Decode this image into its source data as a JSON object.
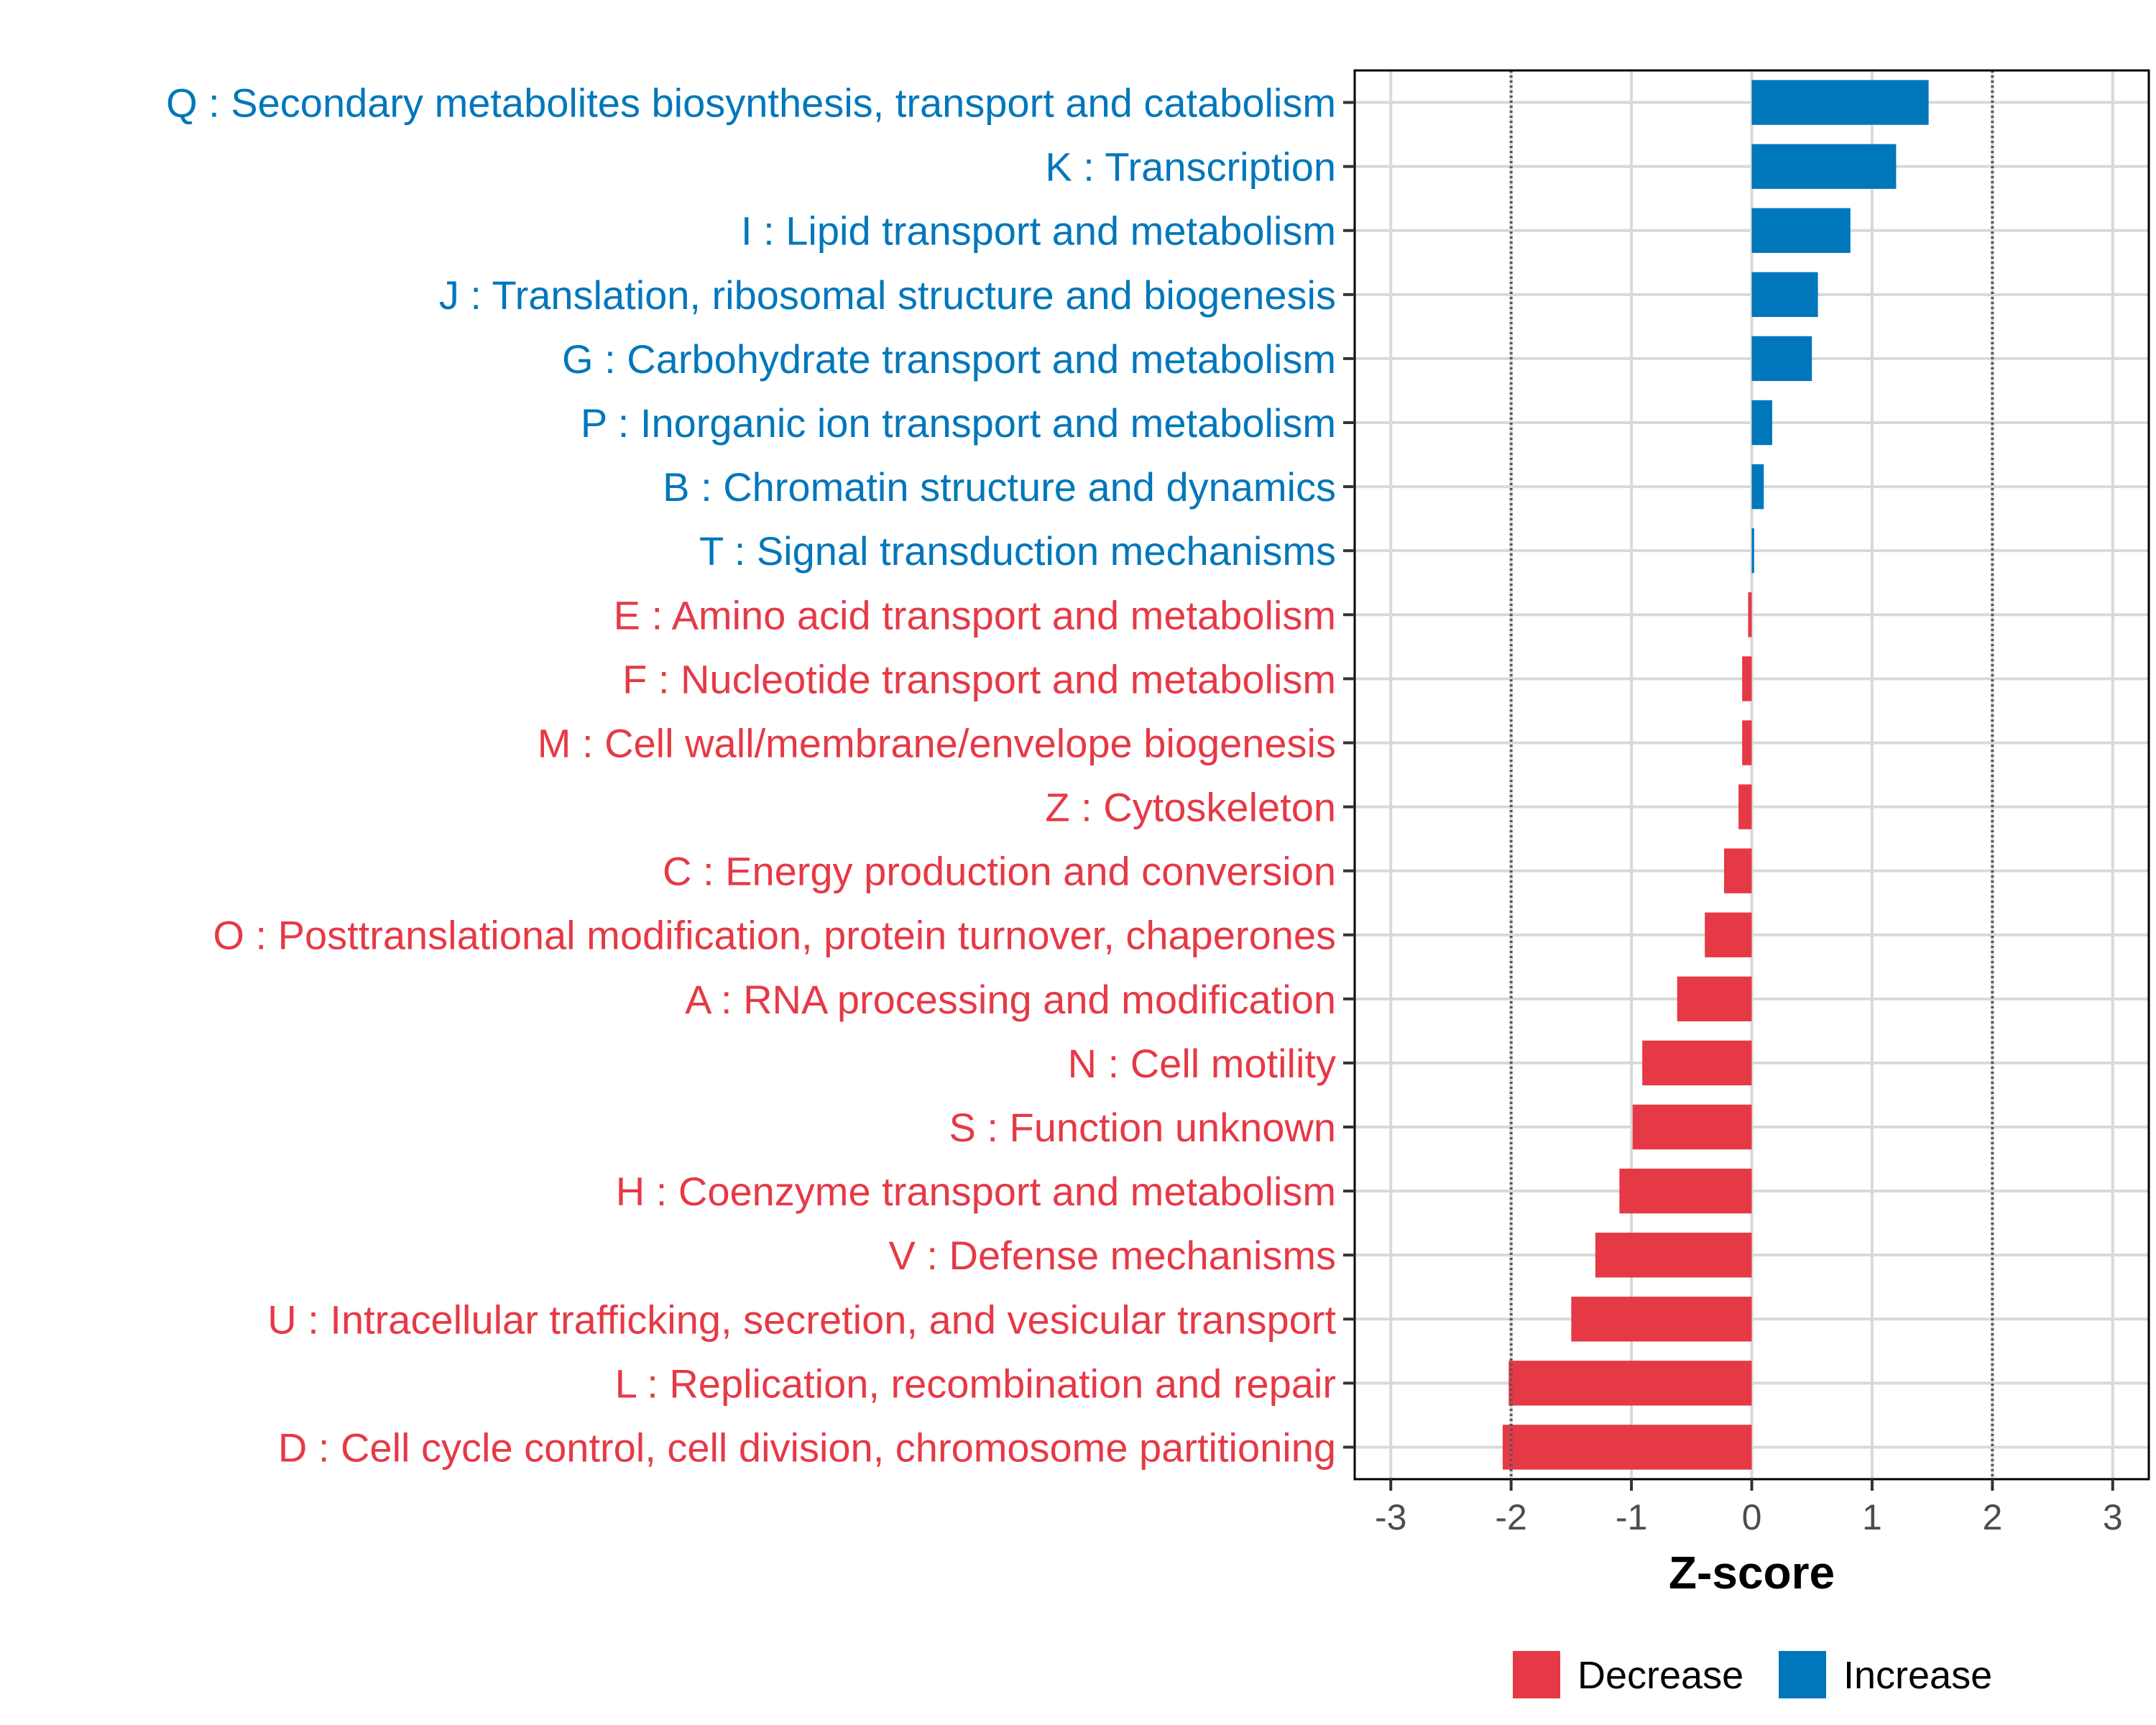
{
  "chart_data": {
    "type": "bar",
    "orientation": "horizontal",
    "title": "",
    "xlabel": "Z-score",
    "ylabel": "",
    "xlim": [
      -3.3,
      3.3
    ],
    "xticks": [
      -3,
      -2,
      -1,
      0,
      1,
      2,
      3
    ],
    "reference_lines": [
      -2,
      2
    ],
    "grid": true,
    "legend_position": "bottom",
    "categories": [
      "Q : Secondary metabolites biosynthesis, transport and catabolism",
      "K : Transcription",
      "I : Lipid transport and metabolism",
      "J : Translation, ribosomal structure and biogenesis",
      "G : Carbohydrate transport and metabolism",
      "P : Inorganic ion transport and metabolism",
      "B : Chromatin structure and dynamics",
      "T : Signal transduction mechanisms",
      "E : Amino acid transport and metabolism",
      "F : Nucleotide transport and metabolism",
      "M : Cell wall/membrane/envelope biogenesis",
      "Z : Cytoskeleton",
      "C : Energy production and conversion",
      "O : Posttranslational modification, protein turnover, chaperones",
      "A : RNA processing and modification",
      "N : Cell motility",
      "S : Function unknown",
      "H : Coenzyme transport and metabolism",
      "V : Defense mechanisms",
      "U : Intracellular trafficking, secretion, and vesicular transport",
      "L : Replication, recombination and repair",
      "D : Cell cycle control, cell division, chromosome partitioning"
    ],
    "values": [
      1.47,
      1.2,
      0.82,
      0.55,
      0.5,
      0.17,
      0.1,
      0.02,
      -0.03,
      -0.08,
      -0.08,
      -0.11,
      -0.23,
      -0.39,
      -0.62,
      -0.91,
      -0.99,
      -1.1,
      -1.3,
      -1.5,
      -2.02,
      -2.07
    ],
    "directions": [
      "Increase",
      "Increase",
      "Increase",
      "Increase",
      "Increase",
      "Increase",
      "Increase",
      "Increase",
      "Decrease",
      "Decrease",
      "Decrease",
      "Decrease",
      "Decrease",
      "Decrease",
      "Decrease",
      "Decrease",
      "Decrease",
      "Decrease",
      "Decrease",
      "Decrease",
      "Decrease",
      "Decrease"
    ],
    "legend": [
      {
        "label": "Decrease",
        "color": "#E63946"
      },
      {
        "label": "Increase",
        "color": "#0077BB"
      }
    ],
    "colors": {
      "Decrease": "#E63946",
      "Increase": "#0077BB",
      "grid": "#D9D9D9",
      "reference_line": "#555555",
      "panel_border": "#000000",
      "tick_text": "#4d4d4d"
    }
  }
}
